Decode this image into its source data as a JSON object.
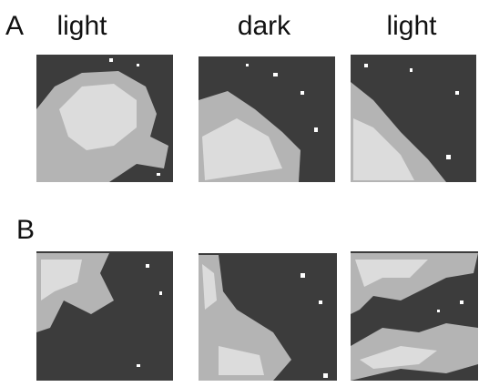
{
  "panel_a": {
    "label": "A",
    "conditions": [
      "light",
      "dark",
      "light"
    ]
  },
  "panel_b": {
    "label": "B"
  }
}
